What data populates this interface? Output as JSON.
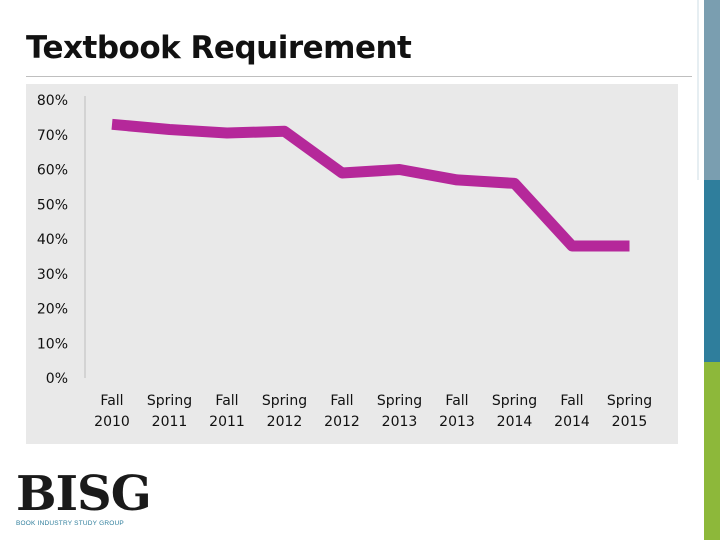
{
  "slide": {
    "title": "Textbook Requirement"
  },
  "logo": {
    "wordmark": "BISG",
    "tagline": "BOOK INDUSTRY STUDY GROUP"
  },
  "colors": {
    "series": "#b5289a",
    "plot_background": "#e9e9e9",
    "accent_top": "#7a9eb0",
    "accent_mid": "#2f7e9c",
    "accent_bottom": "#8db83a"
  },
  "chart_data": {
    "type": "line",
    "title": "Textbook Requirement",
    "xlabel": "",
    "ylabel": "",
    "ylim": [
      0,
      80
    ],
    "yticks": [
      0,
      10,
      20,
      30,
      40,
      50,
      60,
      70,
      80
    ],
    "ytick_labels": [
      "0%",
      "10%",
      "20%",
      "30%",
      "40%",
      "50%",
      "60%",
      "70%",
      "80%"
    ],
    "grid": false,
    "legend": "none",
    "categories": [
      [
        "Fall",
        "2010"
      ],
      [
        "Spring",
        "2011"
      ],
      [
        "Fall",
        "2011"
      ],
      [
        "Spring",
        "2012"
      ],
      [
        "Fall",
        "2012"
      ],
      [
        "Spring",
        "2013"
      ],
      [
        "Fall",
        "2013"
      ],
      [
        "Spring",
        "2014"
      ],
      [
        "Fall",
        "2014"
      ],
      [
        "Spring",
        "2015"
      ]
    ],
    "series": [
      {
        "name": "Textbook Requirement",
        "values": [
          73,
          71.5,
          70.5,
          71,
          59,
          60,
          57,
          56,
          38,
          38
        ]
      }
    ]
  }
}
